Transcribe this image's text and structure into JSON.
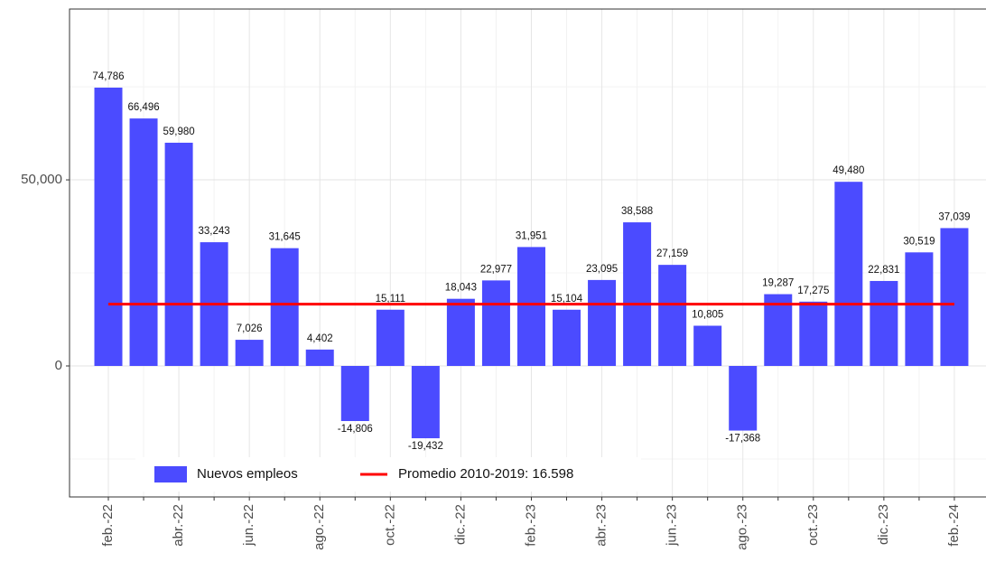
{
  "chart_data": {
    "type": "bar",
    "categories": [
      "feb.-22",
      null,
      "abr.-22",
      null,
      "jun.-22",
      null,
      "ago.-22",
      null,
      "oct.-22",
      null,
      "dic.-22",
      null,
      "feb.-23",
      null,
      "abr.-23",
      null,
      "jun.-23",
      null,
      "ago.-23",
      null,
      "oct.-23",
      null,
      "dic.-23",
      null,
      "feb.-24"
    ],
    "series": [
      {
        "name": "Nuevos empleos",
        "color": "#4b4bff",
        "values": [
          74786,
          66496,
          59980,
          33243,
          7026,
          31645,
          4402,
          -14806,
          15111,
          -19432,
          18043,
          22977,
          31951,
          15104,
          23095,
          38588,
          27159,
          10805,
          -17368,
          19287,
          17275,
          49480,
          22831,
          30519,
          37039
        ],
        "value_labels": [
          "74,786",
          "66,496",
          "59,980",
          "33,243",
          "7,026",
          "31,645",
          "4,402",
          "-14,806",
          "15,111",
          "-19,432",
          "18,043",
          "22,977",
          "31,951",
          "15,104",
          "23,095",
          "38,588",
          "27,159",
          "10,805",
          "-17,368",
          "19,287",
          "17,275",
          "49,480",
          "22,831",
          "30,519",
          "37,039"
        ]
      }
    ],
    "reference_line": {
      "name": "Promedio 2010-2019: 16.598",
      "value": 16598,
      "color": "#ff0000"
    },
    "ylim": [
      -35200,
      95900
    ],
    "yticks": [
      0,
      {
        "value": 50000,
        "label": "50,000"
      }
    ],
    "yticks_minor": [
      -25000,
      25000,
      75000
    ],
    "grid": true
  }
}
